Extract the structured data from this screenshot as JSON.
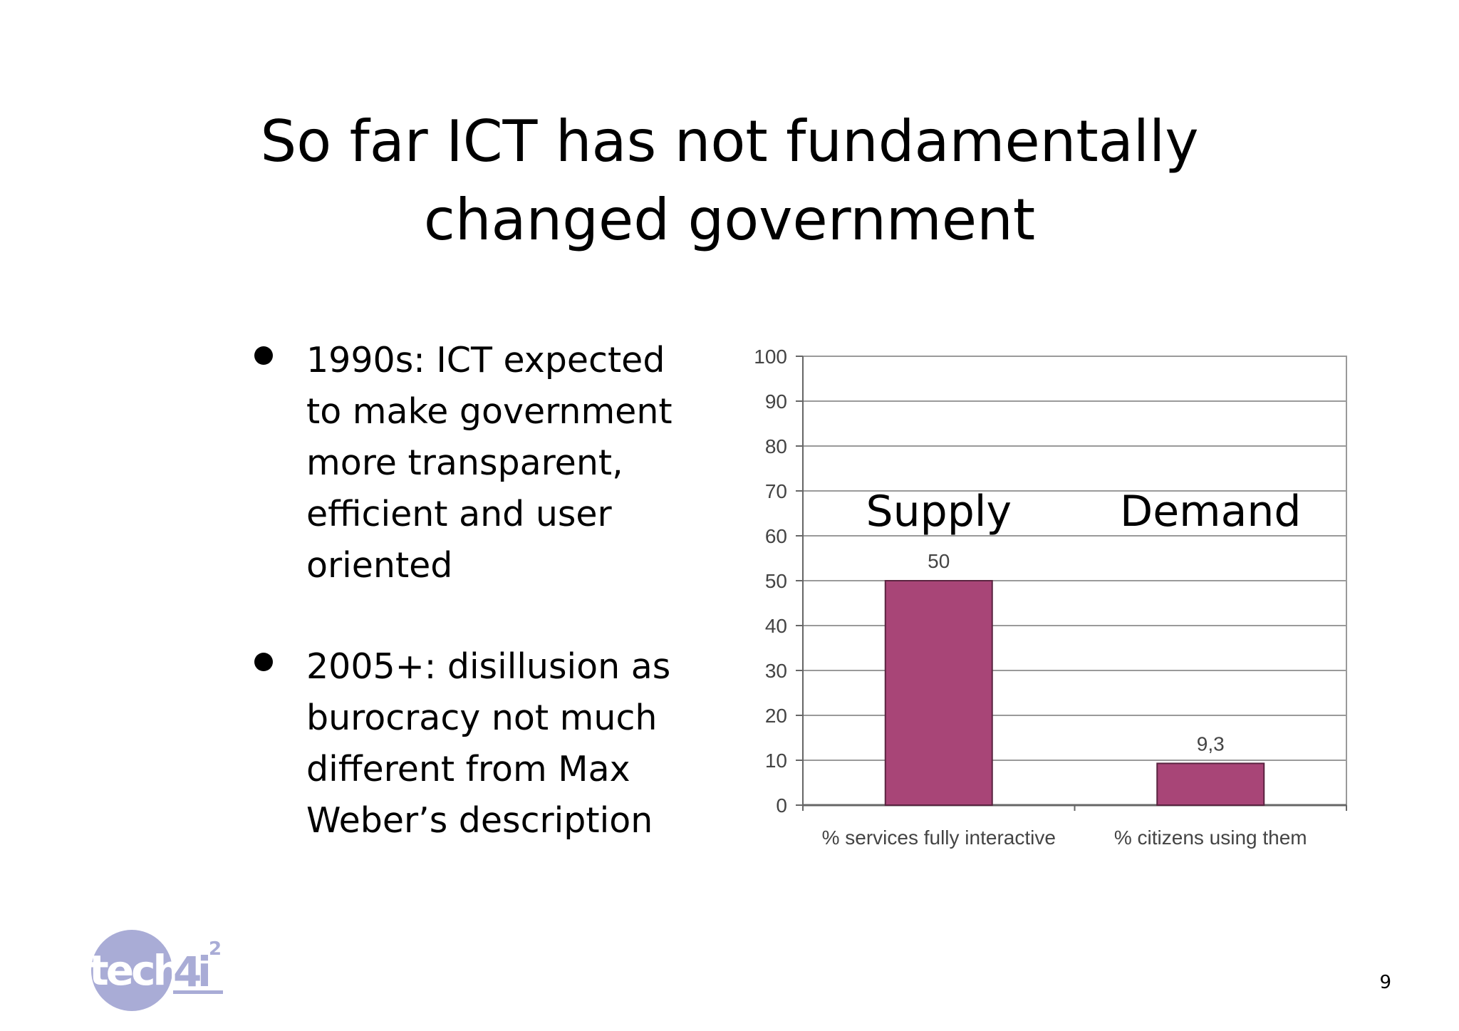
{
  "slide": {
    "title_line1": "So far ICT has not fundamentally",
    "title_line2": "changed government",
    "bullets": [
      "1990s: ICT expected to make government more transparent, efficient and user oriented",
      "2005+: disillusion as burocracy not much different from Max Weber’s description"
    ],
    "page_number": "9",
    "logo_text": "tech4i2"
  },
  "chart_data": {
    "type": "bar",
    "categories": [
      "% services fully interactive",
      "% citizens using them"
    ],
    "values": [
      50,
      9.3
    ],
    "data_labels": [
      "50",
      "9,3"
    ],
    "annotations": [
      "Supply",
      "Demand"
    ],
    "ylim": [
      0,
      100
    ],
    "yticks": [
      "0",
      "10",
      "20",
      "30",
      "40",
      "50",
      "60",
      "70",
      "80",
      "90",
      "100"
    ],
    "grid": true,
    "colors": {
      "bar": "#a84577",
      "bar_stroke": "#5a2440",
      "grid": "#9a9a9a",
      "axis": "#666666"
    }
  }
}
